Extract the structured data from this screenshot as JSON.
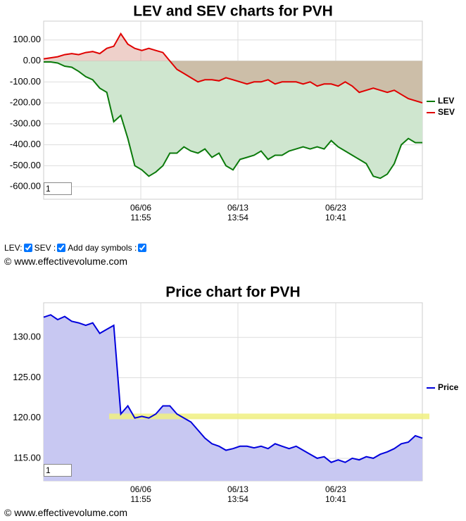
{
  "chart_data": [
    {
      "type": "line",
      "title": "LEV and SEV charts for PVH",
      "x": [
        0,
        1,
        2,
        3,
        4,
        5,
        6,
        7,
        8,
        9,
        10,
        11,
        12,
        13,
        14,
        15,
        16,
        17,
        18,
        19,
        20,
        21,
        22,
        23,
        24,
        25,
        26,
        27,
        28,
        29,
        30,
        31,
        32,
        33,
        34,
        35,
        36,
        37,
        38,
        39,
        40,
        41,
        42,
        43,
        44,
        45,
        46,
        47,
        48,
        49,
        50,
        51,
        52,
        53,
        54
      ],
      "xlim": [
        0,
        54
      ],
      "xticks": [
        {
          "value": 13.85,
          "label": "06/06 11:55"
        },
        {
          "value": 27.7,
          "label": "06/13 13:54"
        },
        {
          "value": 41.65,
          "label": "06/23 10:41"
        }
      ],
      "ylim": [
        -660,
        190
      ],
      "yticks": [
        {
          "value": 100,
          "label": "100.00"
        },
        {
          "value": 0,
          "label": "0.00"
        },
        {
          "value": -100,
          "label": "-100.00"
        },
        {
          "value": -200,
          "label": "-200.00"
        },
        {
          "value": -300,
          "label": "-300.00"
        },
        {
          "value": -400,
          "label": "-400.00"
        },
        {
          "value": -500,
          "label": "-500.00"
        },
        {
          "value": -600,
          "label": "-600.00"
        }
      ],
      "grid": true,
      "series": [
        {
          "name": "LEV",
          "color": "#0b7a0b",
          "fill": "#cfe6cf",
          "values": [
            -5,
            -5,
            -10,
            -25,
            -30,
            -50,
            -75,
            -90,
            -130,
            -150,
            -290,
            -260,
            -370,
            -500,
            -520,
            -550,
            -530,
            -500,
            -440,
            -440,
            -410,
            -430,
            -440,
            -420,
            -460,
            -440,
            -500,
            -520,
            -470,
            -460,
            -450,
            -430,
            -470,
            -450,
            -450,
            -430,
            -420,
            -410,
            -420,
            -410,
            -420,
            -380,
            -410,
            -430,
            -450,
            -470,
            -490,
            -550,
            -560,
            -540,
            -490,
            -400,
            -370,
            -390,
            -390
          ]
        },
        {
          "name": "SEV",
          "color": "#e00000",
          "fill": "rgba(200,100,80,0.3)",
          "values": [
            10,
            15,
            20,
            30,
            35,
            30,
            40,
            45,
            35,
            60,
            70,
            130,
            80,
            60,
            50,
            60,
            50,
            40,
            0,
            -40,
            -60,
            -80,
            -100,
            -90,
            -90,
            -95,
            -80,
            -90,
            -100,
            -110,
            -100,
            -100,
            -90,
            -110,
            -100,
            -100,
            -100,
            -110,
            -100,
            -120,
            -110,
            -110,
            -120,
            -100,
            -120,
            -150,
            -140,
            -130,
            -140,
            -150,
            -140,
            -160,
            -180,
            -190,
            -200
          ]
        }
      ],
      "zoom_input": "1"
    },
    {
      "type": "line",
      "title": "Price chart for PVH",
      "x": [
        0,
        1,
        2,
        3,
        4,
        5,
        6,
        7,
        8,
        9,
        10,
        11,
        12,
        13,
        14,
        15,
        16,
        17,
        18,
        19,
        20,
        21,
        22,
        23,
        24,
        25,
        26,
        27,
        28,
        29,
        30,
        31,
        32,
        33,
        34,
        35,
        36,
        37,
        38,
        39,
        40,
        41,
        42,
        43,
        44,
        45,
        46,
        47,
        48,
        49,
        50,
        51,
        52,
        53,
        54
      ],
      "xlim": [
        0,
        54
      ],
      "xticks": [
        {
          "value": 13.85,
          "label": "06/06 11:55"
        },
        {
          "value": 27.7,
          "label": "06/13 13:54"
        },
        {
          "value": 41.65,
          "label": "06/23 10:41"
        }
      ],
      "ylim": [
        112.2,
        134.3
      ],
      "yticks": [
        {
          "value": 130,
          "label": "130.00"
        },
        {
          "value": 125,
          "label": "125.00"
        },
        {
          "value": 120,
          "label": "120.00"
        },
        {
          "value": 115,
          "label": "115.00"
        }
      ],
      "grid": true,
      "highlight_level": 120.2,
      "series": [
        {
          "name": "Price",
          "color": "#0000dd",
          "fill": "#c8c8f2",
          "values": [
            132.5,
            132.8,
            132.2,
            132.6,
            132,
            131.8,
            131.5,
            131.8,
            130.5,
            131,
            131.5,
            120.5,
            121.5,
            120,
            120.2,
            120,
            120.5,
            121.5,
            121.5,
            120.5,
            120,
            119.5,
            118.5,
            117.5,
            116.8,
            116.5,
            116,
            116.2,
            116.5,
            116.5,
            116.3,
            116.5,
            116.2,
            116.8,
            116.5,
            116.2,
            116.5,
            116,
            115.5,
            115,
            115.2,
            114.5,
            114.8,
            114.5,
            115,
            114.8,
            115.2,
            115,
            115.5,
            115.8,
            116.2,
            116.8,
            117,
            117.8,
            117.5
          ]
        }
      ],
      "zoom_input": "1"
    }
  ],
  "controls": {
    "labels": [
      "LEV:",
      "SEV :",
      "Add day symbols :"
    ],
    "checked": [
      true,
      true,
      true
    ]
  },
  "copyright": "© www.effectivevolume.com"
}
